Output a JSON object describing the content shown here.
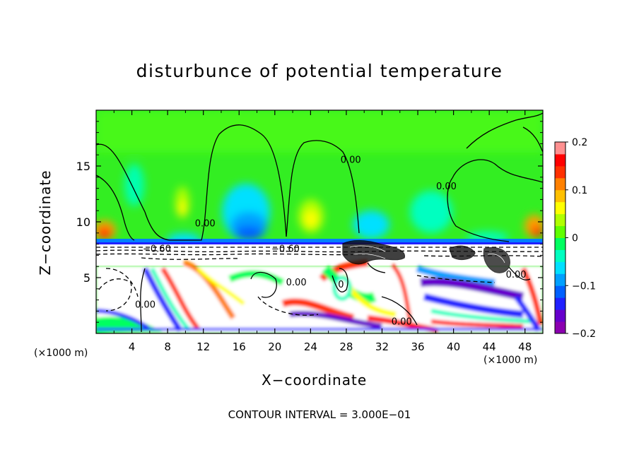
{
  "chart_data": {
    "type": "heatmap",
    "title": "disturbunce of potential temperature",
    "xlabel": "X−coordinate",
    "ylabel": "Z−coordinate",
    "x_unit_left": "(×1000 m)",
    "x_unit_right": "(×1000 m)",
    "footnote": "CONTOUR INTERVAL = 3.000E−01",
    "xlim": [
      0,
      50
    ],
    "ylim": [
      0,
      20
    ],
    "x_ticks": [
      4,
      8,
      12,
      16,
      20,
      24,
      28,
      32,
      36,
      40,
      44,
      48
    ],
    "y_ticks": [
      5,
      10,
      15
    ],
    "colorbar": {
      "range": [
        -0.2,
        0.2
      ],
      "ticks": [
        {
          "value": 0.2,
          "label": "0.2"
        },
        {
          "value": 0.1,
          "label": "0.1"
        },
        {
          "value": 0,
          "label": "0"
        },
        {
          "value": -0.1,
          "label": "−0.1"
        },
        {
          "value": -0.2,
          "label": "−0.2"
        }
      ],
      "colors": [
        "#8b00b0",
        "#6600cc",
        "#2020ff",
        "#0060ff",
        "#00a0ff",
        "#00e0ff",
        "#00ffc0",
        "#00ff60",
        "#60ff00",
        "#b0ff00",
        "#ffff00",
        "#ffc000",
        "#ff8000",
        "#ff3000",
        "#ff0000",
        "#ff9090"
      ]
    },
    "contour_labels": [
      {
        "text": "0.00",
        "x": 12.2,
        "z": 9.6
      },
      {
        "text": "0.00",
        "x": 28.5,
        "z": 15.3
      },
      {
        "text": "0.00",
        "x": 39.2,
        "z": 12.9
      },
      {
        "text": "−0.60",
        "x": 6.8,
        "z": 7.3
      },
      {
        "text": "−0.60",
        "x": 21.2,
        "z": 7.3
      },
      {
        "text": "0.00",
        "x": 5.5,
        "z": 2.3
      },
      {
        "text": "0.00",
        "x": 22.4,
        "z": 4.3
      },
      {
        "text": "0",
        "x": 27.4,
        "z": 4.1
      },
      {
        "text": "0.00",
        "x": 34.2,
        "z": 0.8
      },
      {
        "text": "0.00",
        "x": 47.0,
        "z": 5.0
      }
    ]
  }
}
